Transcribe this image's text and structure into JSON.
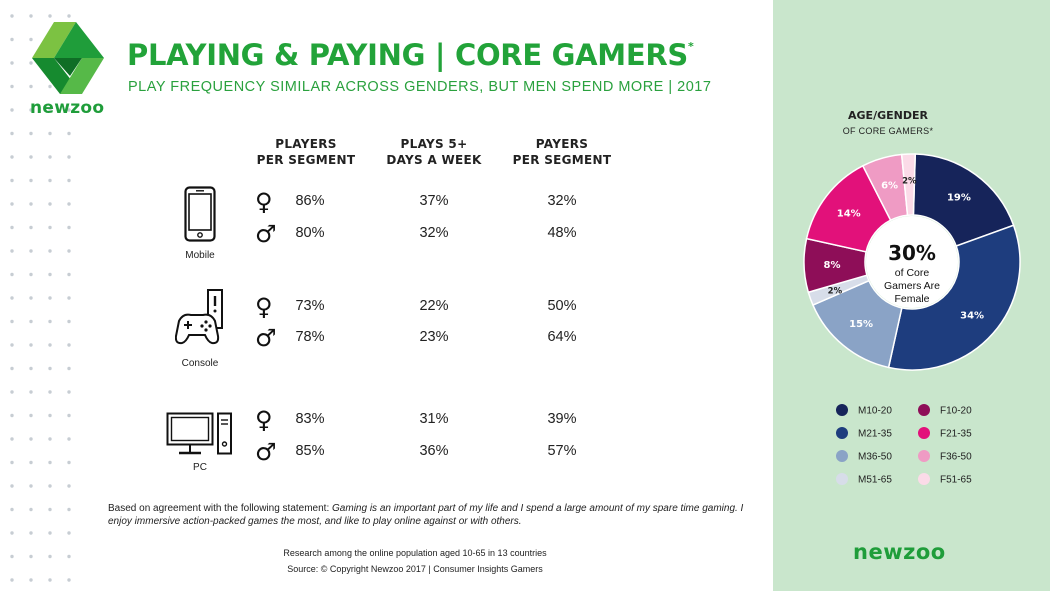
{
  "brand": {
    "logo_text": "newzoo",
    "footer_logo_text": "newzoo",
    "green": "#22a339"
  },
  "header": {
    "title": "PLAYING & PAYING | CORE GAMERS",
    "title_mark": "*",
    "subtitle": "PLAY FREQUENCY SIMILAR ACROSS GENDERS, BUT MEN SPEND MORE | 2017"
  },
  "table": {
    "columns": [
      {
        "line1": "PLAYERS",
        "line2": "PER SEGMENT"
      },
      {
        "line1": "PLAYS 5+",
        "line2": "DAYS A WEEK"
      },
      {
        "line1": "PAYERS",
        "line2": "PER SEGMENT"
      }
    ],
    "symbols": {
      "female": "♀",
      "male": "♂"
    },
    "platforms": [
      {
        "name": "Mobile",
        "icon": "mobile-phone-icon",
        "female": [
          "86%",
          "37%",
          "32%"
        ],
        "male": [
          "80%",
          "32%",
          "48%"
        ]
      },
      {
        "name": "Console",
        "icon": "console-gamepad-icon",
        "female": [
          "73%",
          "22%",
          "50%"
        ],
        "male": [
          "78%",
          "23%",
          "64%"
        ]
      },
      {
        "name": "PC",
        "icon": "pc-monitor-icon",
        "female": [
          "83%",
          "31%",
          "39%"
        ],
        "male": [
          "85%",
          "36%",
          "57%"
        ]
      }
    ]
  },
  "note": {
    "prefix": "Based on agreement with the following statement: ",
    "quote": "Gaming is an important part of my life and I spend a large amount of my spare time gaming. I enjoy immersive action-packed games the most, and like to play online against or with others."
  },
  "footer": {
    "research": "Research among the online population aged 10-65 in 13 countries",
    "source": "Source: © Copyright Newzoo 2017 | Consumer Insights Gamers"
  },
  "chart_data": {
    "type": "pie",
    "title": "AGE/GENDER",
    "subtitle": "OF CORE GAMERS*",
    "center_value": "30%",
    "center_text": [
      "of  Core",
      "Gamers Are",
      "Female"
    ],
    "slices": [
      {
        "label": "M10-20",
        "value": 19,
        "text": "19%",
        "color": "#16245a"
      },
      {
        "label": "M21-35",
        "value": 34,
        "text": "34%",
        "color": "#1e3d7e"
      },
      {
        "label": "M36-50",
        "value": 15,
        "text": "15%",
        "color": "#8aa3c6"
      },
      {
        "label": "M51-65",
        "value": 2,
        "text": "2%",
        "color": "#d7dde9"
      },
      {
        "label": "F10-20",
        "value": 8,
        "text": "8%",
        "color": "#8e0e58"
      },
      {
        "label": "F21-35",
        "value": 14,
        "text": "14%",
        "color": "#e2117a"
      },
      {
        "label": "F36-50",
        "value": 6,
        "text": "6%",
        "color": "#ef9bc4"
      },
      {
        "label": "F51-65",
        "value": 2,
        "text": "2%",
        "color": "#fbdbe8"
      }
    ]
  }
}
